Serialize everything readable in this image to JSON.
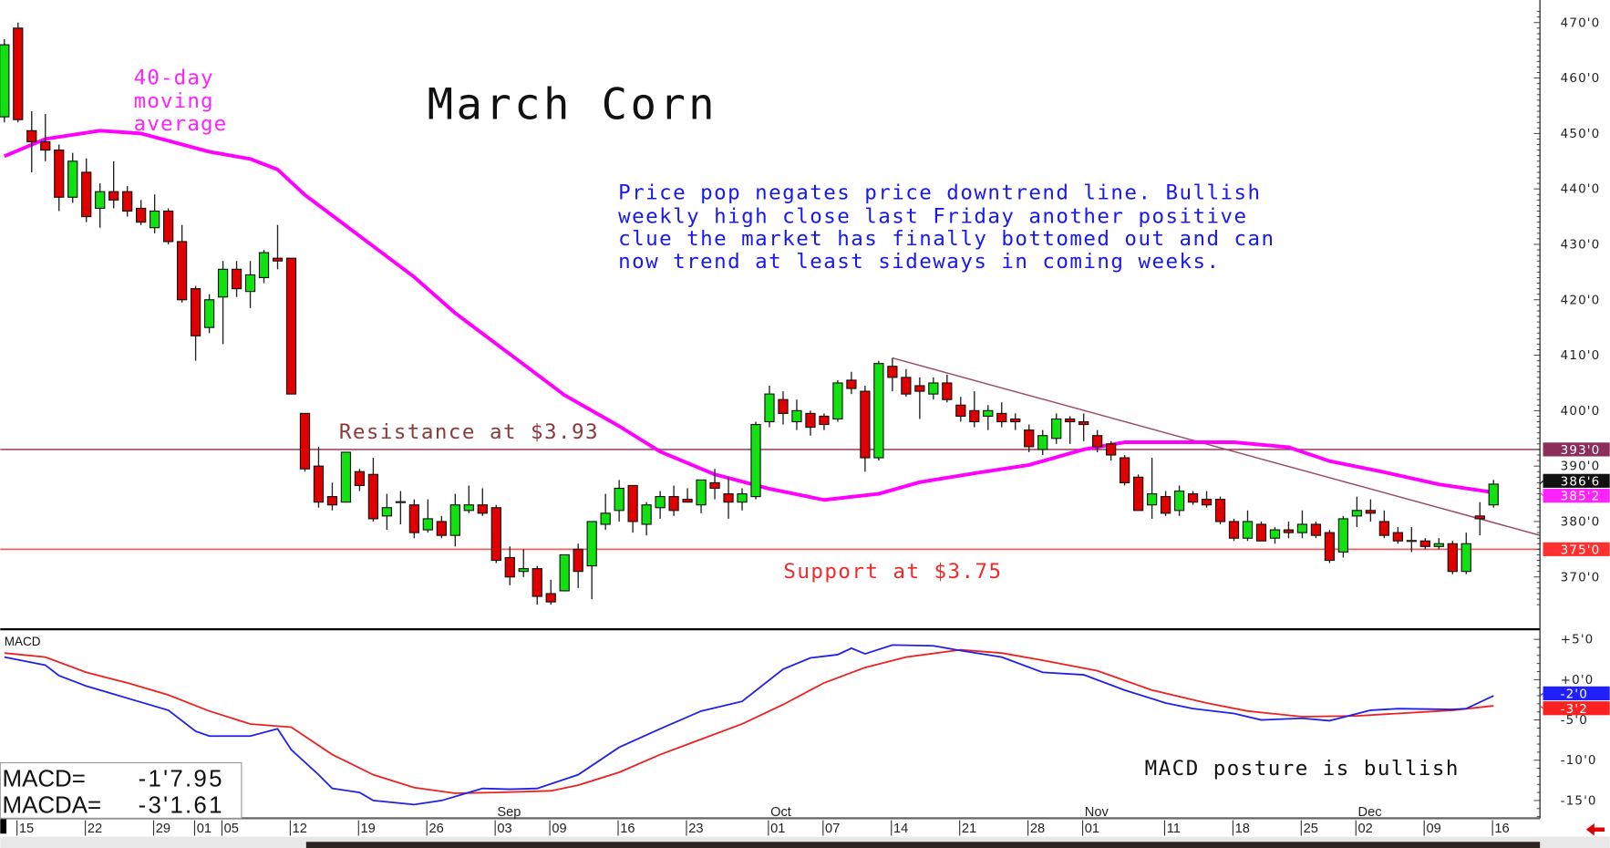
{
  "chart_data": {
    "type": "candlestick",
    "title": "March Corn",
    "annotation": [
      "Price pop negates price downtrend line. Bullish",
      "weekly high close last Friday another positive",
      "clue the market has finally bottomed out and can",
      "now trend at least sideways in coming weeks."
    ],
    "ma_label": [
      "40-day",
      "moving",
      "average"
    ],
    "resistance": {
      "label": "Resistance at $3.93",
      "value": 393,
      "color": "#8b2a4a"
    },
    "support": {
      "label": "Support at $3.75",
      "value": 375,
      "color": "#f06060"
    },
    "price_ylim": [
      364,
      472
    ],
    "price_ticks": [
      {
        "v": 470,
        "t": "470'0"
      },
      {
        "v": 460,
        "t": "460'0"
      },
      {
        "v": 450,
        "t": "450'0"
      },
      {
        "v": 440,
        "t": "440'0"
      },
      {
        "v": 430,
        "t": "430'0"
      },
      {
        "v": 420,
        "t": "420'0"
      },
      {
        "v": 410,
        "t": "410'0"
      },
      {
        "v": 400,
        "t": "400'0"
      },
      {
        "v": 390,
        "t": "390'0"
      },
      {
        "v": 380,
        "t": "380'0"
      },
      {
        "v": 370,
        "t": "370'0"
      }
    ],
    "price_tags": [
      {
        "v": 393,
        "t": "393'0",
        "bg": "#8b2f5a",
        "fg": "#ffffff"
      },
      {
        "v": 385.25,
        "t": "385'2",
        "bg": "#ff22ff",
        "fg": "#ffffff"
      },
      {
        "v": 386.75,
        "t": "386'6",
        "bg": "#111111",
        "fg": "#ffffff"
      },
      {
        "v": 375,
        "t": "375'0",
        "bg": "#ff3030",
        "fg": "#ffffff"
      }
    ],
    "colors": {
      "up": "#11e011",
      "down": "#e00000",
      "ma": "#ff00ff",
      "macd": "#2020e8",
      "signal": "#ee2020",
      "trend": "#9a4a6a"
    },
    "candles": [
      [
        "Jul 12",
        453,
        467,
        452,
        466
      ],
      [
        "Jul 15",
        469,
        470,
        452,
        452.5
      ],
      [
        "Jul 16",
        450.5,
        454,
        443,
        448.5
      ],
      [
        "Jul 17",
        448.5,
        453.5,
        445,
        447
      ],
      [
        "Jul 18",
        447,
        448,
        436,
        438.5
      ],
      [
        "Jul 19",
        438.5,
        446.5,
        437.5,
        445
      ],
      [
        "Jul 22",
        443,
        445.5,
        434,
        435
      ],
      [
        "Jul 23",
        436.5,
        441,
        433,
        439.5
      ],
      [
        "Jul 24",
        439.5,
        445,
        436.5,
        438
      ],
      [
        "Jul 25",
        439.5,
        440.5,
        435,
        436
      ],
      [
        "Jul 26",
        436.5,
        438,
        433.5,
        434
      ],
      [
        "Jul 29",
        433,
        439,
        432,
        436
      ],
      [
        "Jul 30",
        436,
        436.5,
        430,
        430.5
      ],
      [
        "Jul 31",
        430.5,
        433.5,
        419.5,
        420
      ],
      [
        "Aug 1",
        422,
        422.5,
        409,
        413.5
      ],
      [
        "Aug 2",
        415,
        421,
        414,
        420
      ],
      [
        "Aug 5",
        420.5,
        427,
        412,
        425.5
      ],
      [
        "Aug 6",
        425.5,
        427,
        420.5,
        422
      ],
      [
        "Aug 7",
        421.5,
        427,
        418.5,
        424.5
      ],
      [
        "Aug 8",
        424,
        429,
        423,
        428.5
      ],
      [
        "Aug 9",
        427.5,
        433.5,
        425.5,
        427
      ],
      [
        "Aug 12",
        427.5,
        427.5,
        403,
        403
      ],
      [
        "Aug 13",
        399.5,
        399.5,
        389,
        389.5
      ],
      [
        "Aug 14",
        390,
        393.5,
        382.5,
        383.5
      ],
      [
        "Aug 15",
        384.5,
        387,
        382,
        383
      ],
      [
        "Aug 16",
        383.5,
        392.5,
        383.5,
        392.5
      ],
      [
        "Aug 19",
        389,
        389.5,
        385.5,
        386.5
      ],
      [
        "Aug 20",
        388.5,
        391.5,
        380,
        380.5
      ],
      [
        "Aug 21",
        381,
        385,
        378.5,
        382.5
      ],
      [
        "Aug 22",
        383.5,
        385.5,
        379.5,
        383.5
      ],
      [
        "Aug 23",
        383,
        384,
        377,
        378
      ],
      [
        "Aug 26",
        378.5,
        384,
        378,
        380.5
      ],
      [
        "Aug 27",
        380,
        381,
        377,
        377.5
      ],
      [
        "Aug 28",
        377.5,
        385,
        375.5,
        383
      ],
      [
        "Aug 29",
        382,
        386.5,
        381.5,
        383
      ],
      [
        "Aug 30",
        383,
        386,
        381,
        381.5
      ],
      [
        "Sep 3",
        382.5,
        383,
        372.5,
        373
      ],
      [
        "Sep 4",
        373.5,
        375.5,
        368.5,
        370
      ],
      [
        "Sep 5",
        371,
        375,
        370,
        371.5
      ],
      [
        "Sep 6",
        371.5,
        372,
        365,
        366.5
      ],
      [
        "Sep 9",
        367,
        369.5,
        365,
        365.5
      ],
      [
        "Sep 10",
        367.5,
        374,
        367.5,
        374
      ],
      [
        "Sep 11",
        375,
        376,
        368,
        371
      ],
      [
        "Sep 12",
        372,
        380,
        366,
        380
      ],
      [
        "Sep 13",
        379.5,
        385,
        378.5,
        381.5
      ],
      [
        "Sep 16",
        382,
        387.5,
        380,
        386
      ],
      [
        "Sep 17",
        386.5,
        386.5,
        378,
        380
      ],
      [
        "Sep 18",
        379.5,
        383.5,
        377.5,
        383
      ],
      [
        "Sep 19",
        382.5,
        385.5,
        380.5,
        384.5
      ],
      [
        "Sep 20",
        384.5,
        386.5,
        381,
        382
      ],
      [
        "Sep 23",
        384,
        386,
        383.5,
        383.5
      ],
      [
        "Sep 24",
        383,
        387.5,
        381.5,
        387.5
      ],
      [
        "Sep 25",
        387,
        389.5,
        384,
        386
      ],
      [
        "Sep 26",
        385,
        388,
        380.5,
        383.5
      ],
      [
        "Sep 27",
        383.5,
        386,
        382,
        385
      ],
      [
        "Sep 30",
        384.5,
        398,
        384,
        397.5
      ],
      [
        "Oct 1",
        398,
        404.5,
        397,
        403
      ],
      [
        "Oct 2",
        402,
        403.5,
        397.5,
        399.5
      ],
      [
        "Oct 3",
        398,
        402,
        396.5,
        400
      ],
      [
        "Oct 4",
        399.5,
        400,
        395.5,
        397
      ],
      [
        "Oct 7",
        399,
        399.5,
        396.5,
        397.5
      ],
      [
        "Oct 8",
        398.5,
        405.5,
        398,
        405
      ],
      [
        "Oct 9",
        405.5,
        407,
        403,
        404
      ],
      [
        "Oct 10",
        403.5,
        404.5,
        389,
        391.5
      ],
      [
        "Oct 11",
        391.5,
        409,
        391,
        408.5
      ],
      [
        "Oct 14",
        408,
        409.5,
        403.5,
        406
      ],
      [
        "Oct 15",
        406,
        407.5,
        402.5,
        403
      ],
      [
        "Oct 16",
        404.5,
        406,
        398.5,
        403.5
      ],
      [
        "Oct 17",
        403,
        406,
        402,
        405
      ],
      [
        "Oct 18",
        405,
        406.5,
        401.5,
        402
      ],
      [
        "Oct 21",
        401,
        402.5,
        398,
        399
      ],
      [
        "Oct 22",
        400,
        403.5,
        397,
        398
      ],
      [
        "Oct 23",
        399,
        401,
        396.5,
        400
      ],
      [
        "Oct 24",
        399.5,
        401.5,
        397,
        398
      ],
      [
        "Oct 25",
        398.5,
        399.5,
        396.5,
        398
      ],
      [
        "Oct 28",
        396.5,
        397.5,
        392.5,
        393.5
      ],
      [
        "Oct 29",
        393,
        396.5,
        392,
        395.5
      ],
      [
        "Oct 30",
        395,
        399.5,
        394,
        398.5
      ],
      [
        "Oct 31",
        398.5,
        399,
        394,
        398
      ],
      [
        "Nov 1",
        398,
        399.5,
        394.5,
        397.5
      ],
      [
        "Nov 4",
        395.5,
        396.5,
        392.5,
        393.5
      ],
      [
        "Nov 5",
        394,
        394.5,
        391,
        392
      ],
      [
        "Nov 6",
        391.5,
        392,
        386.5,
        387
      ],
      [
        "Nov 7",
        388,
        388.5,
        382,
        382
      ],
      [
        "Nov 8",
        383,
        391.5,
        380.5,
        385
      ],
      [
        "Nov 11",
        384.5,
        385.5,
        381,
        381.5
      ],
      [
        "Nov 12",
        382,
        386.5,
        381,
        385.5
      ],
      [
        "Nov 13",
        385,
        385.5,
        383,
        383.5
      ],
      [
        "Nov 14",
        384,
        385.5,
        382.5,
        383
      ],
      [
        "Nov 15",
        384,
        384.5,
        379.5,
        380
      ],
      [
        "Nov 18",
        380,
        380.5,
        376.5,
        377
      ],
      [
        "Nov 19",
        377,
        382,
        376.5,
        380
      ],
      [
        "Nov 20",
        379.5,
        380,
        376.5,
        376.5
      ],
      [
        "Nov 21",
        377,
        379,
        376,
        378.5
      ],
      [
        "Nov 22",
        378.5,
        380,
        377,
        378
      ],
      [
        "Nov 25",
        378,
        382,
        377,
        379.5
      ],
      [
        "Nov 26",
        379.5,
        380,
        377,
        377.5
      ],
      [
        "Nov 27",
        378,
        378.5,
        372.5,
        373
      ],
      [
        "Nov 29",
        374.5,
        381,
        373.5,
        380.5
      ],
      [
        "Dec 2",
        381,
        384.5,
        379,
        382
      ],
      [
        "Dec 3",
        382,
        384,
        380,
        381.5
      ],
      [
        "Dec 4",
        380,
        382,
        377,
        377.5
      ],
      [
        "Dec 5",
        378,
        379,
        376,
        376.5
      ],
      [
        "Dec 6",
        376.5,
        379,
        374.5,
        376.5
      ],
      [
        "Dec 9",
        376.5,
        377,
        375,
        375.5
      ],
      [
        "Dec 10",
        375.5,
        377,
        375,
        376
      ],
      [
        "Dec 11",
        376,
        376.5,
        370.5,
        371
      ],
      [
        "Dec 12",
        371,
        378,
        370.5,
        376
      ],
      [
        "Dec 13",
        381,
        383.5,
        377.5,
        380.5
      ],
      [
        "Dec 16",
        383,
        387.5,
        382.5,
        386.75
      ]
    ],
    "ma40": [
      [
        "Jul 12",
        445.9
      ],
      [
        "Jul 17",
        449
      ],
      [
        "Jul 23",
        450.5
      ],
      [
        "Jul 26",
        450
      ],
      [
        "Aug 2",
        446.7
      ],
      [
        "Aug 7",
        445.4
      ],
      [
        "Aug 9",
        443.5
      ],
      [
        "Aug 13",
        438.9
      ],
      [
        "Aug 19",
        431.5
      ],
      [
        "Aug 23",
        424.1
      ],
      [
        "Aug 28",
        417.6
      ],
      [
        "Sep 4",
        410.2
      ],
      [
        "Sep 10",
        402.8
      ],
      [
        "Sep 16",
        397.2
      ],
      [
        "Sep 19",
        392.6
      ],
      [
        "Sep 25",
        388.5
      ],
      [
        "Oct 1",
        385.9
      ],
      [
        "Oct 7",
        383.9
      ],
      [
        "Oct 11",
        385
      ],
      [
        "Oct 16",
        387.1
      ],
      [
        "Oct 22",
        388.7
      ],
      [
        "Oct 28",
        390.2
      ],
      [
        "Nov 1",
        393
      ],
      [
        "Nov 6",
        394.3
      ],
      [
        "Nov 12",
        394.3
      ],
      [
        "Nov 18",
        394.3
      ],
      [
        "Nov 22",
        393.4
      ],
      [
        "Nov 27",
        390.9
      ],
      [
        "Dec 4",
        388.9
      ],
      [
        "Dec 10",
        386.7
      ],
      [
        "Dec 16",
        385.25
      ]
    ],
    "trendline": {
      "start": [
        "Oct 14",
        409.5
      ],
      "end": [
        "Dec 16",
        379.8
      ]
    },
    "macd_label": "MACD",
    "macd_ylim": [
      -17,
      7
    ],
    "macd_ticks": [
      {
        "v": 5,
        "t": "+5'0"
      },
      {
        "v": 0,
        "t": "+0'0"
      },
      {
        "v": -5,
        "t": "-5'0"
      },
      {
        "v": -10,
        "t": "-10'0"
      },
      {
        "v": -15,
        "t": "-15'0"
      }
    ],
    "macd_tags": [
      {
        "v": -2,
        "t": "-2'0",
        "bg": "#2020ff",
        "fg": "#ffffff"
      },
      {
        "v": -3.25,
        "t": "-3'2",
        "bg": "#ff2020",
        "fg": "#ffffff"
      }
    ],
    "macd": [
      [
        "Jul 12",
        2.8
      ],
      [
        "Jul 17",
        1.8
      ],
      [
        "Jul 18",
        0.5
      ],
      [
        "Jul 22",
        -0.8
      ],
      [
        "Jul 25",
        -2.3
      ],
      [
        "Jul 30",
        -3.8
      ],
      [
        "Aug 1",
        -6.4
      ],
      [
        "Aug 2",
        -7
      ],
      [
        "Aug 7",
        -7
      ],
      [
        "Aug 9",
        -6.1
      ],
      [
        "Aug 12",
        -8.7
      ],
      [
        "Aug 14",
        -11.8
      ],
      [
        "Aug 15",
        -13.5
      ],
      [
        "Aug 19",
        -14
      ],
      [
        "Aug 20",
        -15
      ],
      [
        "Aug 23",
        -15.5
      ],
      [
        "Aug 27",
        -15
      ],
      [
        "Aug 30",
        -13.5
      ],
      [
        "Sep 4",
        -13.6
      ],
      [
        "Sep 6",
        -13.5
      ],
      [
        "Sep 11",
        -11.8
      ],
      [
        "Sep 16",
        -8.4
      ],
      [
        "Sep 19",
        -6.1
      ],
      [
        "Sep 24",
        -3.9
      ],
      [
        "Sep 27",
        -2.7
      ],
      [
        "Oct 2",
        1.3
      ],
      [
        "Oct 4",
        2.7
      ],
      [
        "Oct 8",
        3.1
      ],
      [
        "Oct 9",
        3.9
      ],
      [
        "Oct 10",
        3.2
      ],
      [
        "Oct 14",
        4.3
      ],
      [
        "Oct 17",
        4.2
      ],
      [
        "Oct 21",
        3.6
      ],
      [
        "Oct 24",
        2.8
      ],
      [
        "Oct 29",
        0.9
      ],
      [
        "Nov 1",
        0.6
      ],
      [
        "Nov 6",
        -1.3
      ],
      [
        "Nov 11",
        -2.9
      ],
      [
        "Nov 13",
        -3.6
      ],
      [
        "Nov 18",
        -4.2
      ],
      [
        "Nov 20",
        -5
      ],
      [
        "Nov 25",
        -4.8
      ],
      [
        "Nov 27",
        -5.1
      ],
      [
        "Dec 3",
        -3.8
      ],
      [
        "Dec 5",
        -3.6
      ],
      [
        "Dec 11",
        -3.7
      ],
      [
        "Dec 12",
        -3.6
      ],
      [
        "Dec 16",
        -2.0
      ]
    ],
    "macd_signal": [
      [
        "Jul 12",
        3.3
      ],
      [
        "Jul 17",
        2.8
      ],
      [
        "Jul 22",
        0.9
      ],
      [
        "Jul 25",
        -0.4
      ],
      [
        "Jul 30",
        -1.9
      ],
      [
        "Aug 2",
        -3.9
      ],
      [
        "Aug 7",
        -5.5
      ],
      [
        "Aug 12",
        -5.9
      ],
      [
        "Aug 15",
        -9.3
      ],
      [
        "Aug 20",
        -11.8
      ],
      [
        "Aug 23",
        -13.4
      ],
      [
        "Aug 28",
        -14.1
      ],
      [
        "Sep 3",
        -14
      ],
      [
        "Sep 9",
        -13.8
      ],
      [
        "Sep 11",
        -13.1
      ],
      [
        "Sep 16",
        -11.5
      ],
      [
        "Sep 19",
        -9.3
      ],
      [
        "Sep 24",
        -7.4
      ],
      [
        "Sep 27",
        -5.5
      ],
      [
        "Oct 2",
        -3.1
      ],
      [
        "Oct 7",
        -0.4
      ],
      [
        "Oct 10",
        1.5
      ],
      [
        "Oct 15",
        2.8
      ],
      [
        "Oct 21",
        3.7
      ],
      [
        "Oct 24",
        3.3
      ],
      [
        "Oct 29",
        2.4
      ],
      [
        "Nov 4",
        1.1
      ],
      [
        "Nov 8",
        -1.3
      ],
      [
        "Nov 14",
        -2.9
      ],
      [
        "Nov 19",
        -3.9
      ],
      [
        "Nov 25",
        -4.6
      ],
      [
        "Dec 2",
        -4.5
      ],
      [
        "Dec 6",
        -4.1
      ],
      [
        "Dec 11",
        -3.8
      ],
      [
        "Dec 16",
        -3.25
      ]
    ],
    "macd_readout": {
      "macd_label": "MACD=",
      "macd_value": "-1'7.95",
      "macda_label": "MACDA=",
      "macda_value": "-3'1.61"
    },
    "macd_note": "MACD posture is bullish",
    "x_ticks": [
      {
        "d": "Jul 15",
        "t": "15"
      },
      {
        "d": "Jul 22",
        "t": "22"
      },
      {
        "d": "Jul 29",
        "t": "29"
      },
      {
        "d": "Aug 1",
        "t": "01"
      },
      {
        "d": "Aug 5",
        "t": "05"
      },
      {
        "d": "Aug 12",
        "t": "12"
      },
      {
        "d": "Aug 19",
        "t": "19"
      },
      {
        "d": "Aug 26",
        "t": "26"
      },
      {
        "d": "Sep 3",
        "t": "03"
      },
      {
        "d": "Sep 9",
        "t": "09"
      },
      {
        "d": "Sep 16",
        "t": "16"
      },
      {
        "d": "Sep 23",
        "t": "23"
      },
      {
        "d": "Oct 1",
        "t": "01"
      },
      {
        "d": "Oct 7",
        "t": "07"
      },
      {
        "d": "Oct 14",
        "t": "14"
      },
      {
        "d": "Oct 21",
        "t": "21"
      },
      {
        "d": "Oct 28",
        "t": "28"
      },
      {
        "d": "Nov 1",
        "t": "01"
      },
      {
        "d": "Nov 11",
        "t": "11"
      },
      {
        "d": "Nov 18",
        "t": "18"
      },
      {
        "d": "Nov 25",
        "t": "25"
      },
      {
        "d": "Dec 2",
        "t": "02"
      },
      {
        "d": "Dec 9",
        "t": "09"
      },
      {
        "d": "Dec 16",
        "t": "16"
      }
    ],
    "month_labels": [
      {
        "d": "Sep 3",
        "t": "Sep"
      },
      {
        "d": "Oct 1",
        "t": "Oct"
      },
      {
        "d": "Nov 1",
        "t": "Nov"
      },
      {
        "d": "Dec 2",
        "t": "Dec"
      }
    ],
    "grid": false
  }
}
